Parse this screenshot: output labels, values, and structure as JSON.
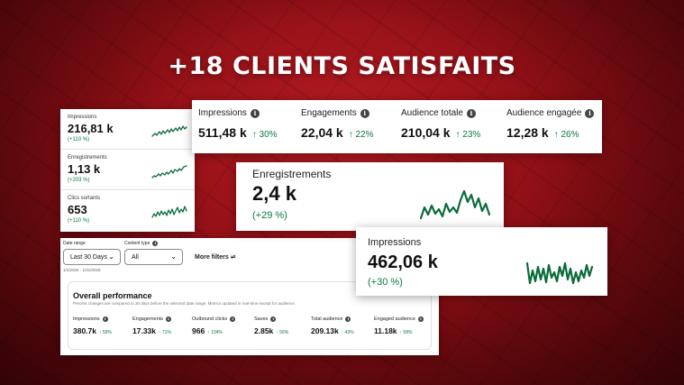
{
  "headline": "+18 CLIENTS SATISFAITS",
  "left_card": {
    "rows": [
      {
        "label": "Impressions",
        "value": "216,81 k",
        "change": "(+110 %)"
      },
      {
        "label": "Enregistrements",
        "value": "1,13 k",
        "change": "(+203 %)"
      },
      {
        "label": "Clics sortants",
        "value": "653",
        "change": "(+110 %)"
      }
    ]
  },
  "top_card": {
    "kpis": [
      {
        "label": "Impressions",
        "value": "511,48 k",
        "change": "30%"
      },
      {
        "label": "Engagements",
        "value": "22,04 k",
        "change": "22%"
      },
      {
        "label": "Audience totale",
        "value": "210,04 k",
        "change": "23%"
      },
      {
        "label": "Audience engagée",
        "value": "12,28 k",
        "change": "26%"
      }
    ]
  },
  "saves_card": {
    "label": "Enregistrements",
    "value": "2,4 k",
    "change": "(+29 %)"
  },
  "impressions_card": {
    "label": "Impressions",
    "value": "462,06 k",
    "change": "(+30 %)"
  },
  "dashboard": {
    "filters": {
      "date_range_label": "Date range",
      "date_range_value": "Last 30 Days",
      "date_range_dates": "1/1/2025 - 1/31/2025",
      "content_type_label": "Content type",
      "content_type_value": "All",
      "more_filters": "More filters"
    },
    "performance": {
      "title": "Overall performance",
      "description": "Percent changes are compared to 30 days before the selected date range. Metrics updated in real-time except for audience.",
      "metrics": [
        {
          "label": "Impressions",
          "value": "380.7k",
          "change": "59%"
        },
        {
          "label": "Engagements",
          "value": "17.33k",
          "change": "71%"
        },
        {
          "label": "Outbound clicks",
          "value": "966",
          "change": "104%"
        },
        {
          "label": "Saves",
          "value": "2.85k",
          "change": "56%"
        },
        {
          "label": "Total audience",
          "value": "209.13k",
          "change": "43%"
        },
        {
          "label": "Engaged audience",
          "value": "11.18k",
          "change": "58%"
        }
      ]
    }
  },
  "icons": {
    "info": "info-icon",
    "trend_up": "arrow-up-icon",
    "chevron": "chevron-down-icon",
    "filter": "filter-icon"
  },
  "colors": {
    "background": "#8e0f15",
    "positive": "#0b7a3e",
    "sparkline": "#0b6b3a"
  }
}
